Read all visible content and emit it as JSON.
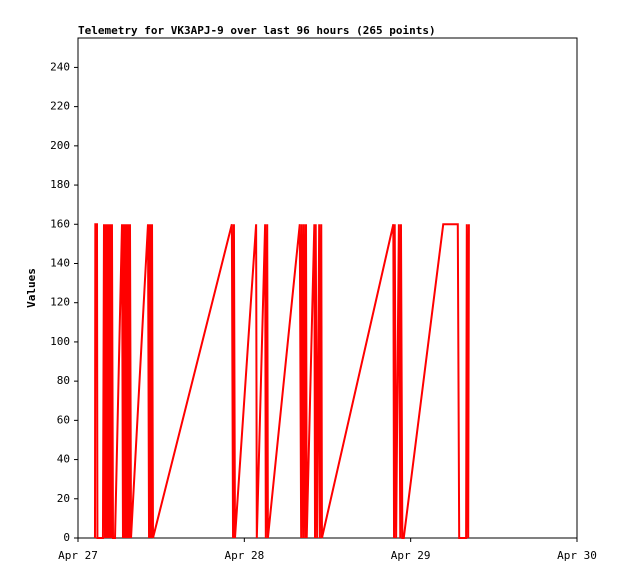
{
  "chart_data": {
    "type": "line",
    "title": "Telemetry for VK3APJ-9 over last 96 hours (265 points)",
    "ylabel": "Values",
    "x": [
      2.45,
      2.5,
      2.74,
      2.8,
      3.6,
      3.75,
      3.9,
      4.04,
      4.18,
      4.33,
      4.47,
      4.62,
      4.76,
      4.9,
      5.05,
      5.34,
      6.35,
      6.49,
      6.64,
      6.78,
      6.93,
      7.07,
      7.22,
      7.36,
      7.5,
      7.65,
      10.1,
      10.25,
      10.39,
      10.53,
      10.68,
      10.82,
      22.2,
      22.37,
      22.5,
      22.65,
      25.7,
      25.8,
      27.0,
      27.1,
      27.3,
      27.4,
      32.0,
      32.2,
      32.3,
      32.5,
      32.6,
      32.8,
      32.9,
      33.0,
      34.1,
      34.2,
      34.3,
      34.5,
      34.8,
      34.9,
      35.1,
      35.2,
      45.5,
      45.6,
      45.7,
      45.9,
      46.3,
      46.5,
      46.6,
      46.8,
      47.0,
      52.7,
      54.8,
      55.0,
      56.0,
      56.1,
      56.3,
      56.4
    ],
    "series": [
      {
        "name": "Values",
        "color": "#ff0000",
        "values": [
          0,
          160,
          160,
          0,
          0,
          160,
          0,
          160,
          0,
          160,
          0,
          160,
          0,
          160,
          0,
          0,
          160,
          0,
          160,
          0,
          160,
          0,
          160,
          0,
          160,
          0,
          160,
          0,
          160,
          0,
          160,
          0,
          160,
          0,
          160,
          0,
          160,
          0,
          160,
          0,
          160,
          0,
          160,
          0,
          160,
          0,
          160,
          0,
          160,
          0,
          160,
          0,
          160,
          0,
          160,
          0,
          160,
          0,
          160,
          0,
          160,
          0,
          160,
          0,
          160,
          0,
          0,
          160,
          160,
          0,
          0,
          160,
          0,
          160
        ]
      }
    ],
    "xlim": [
      0,
      72
    ],
    "xticks": [
      {
        "value": 0,
        "label": "Apr 27"
      },
      {
        "value": 24,
        "label": "Apr 28"
      },
      {
        "value": 48,
        "label": "Apr 29"
      },
      {
        "value": 72,
        "label": "Apr 30"
      }
    ],
    "ylim": [
      0,
      255
    ],
    "yticks": [
      0,
      20,
      40,
      60,
      80,
      100,
      120,
      140,
      160,
      180,
      200,
      220,
      240
    ]
  }
}
